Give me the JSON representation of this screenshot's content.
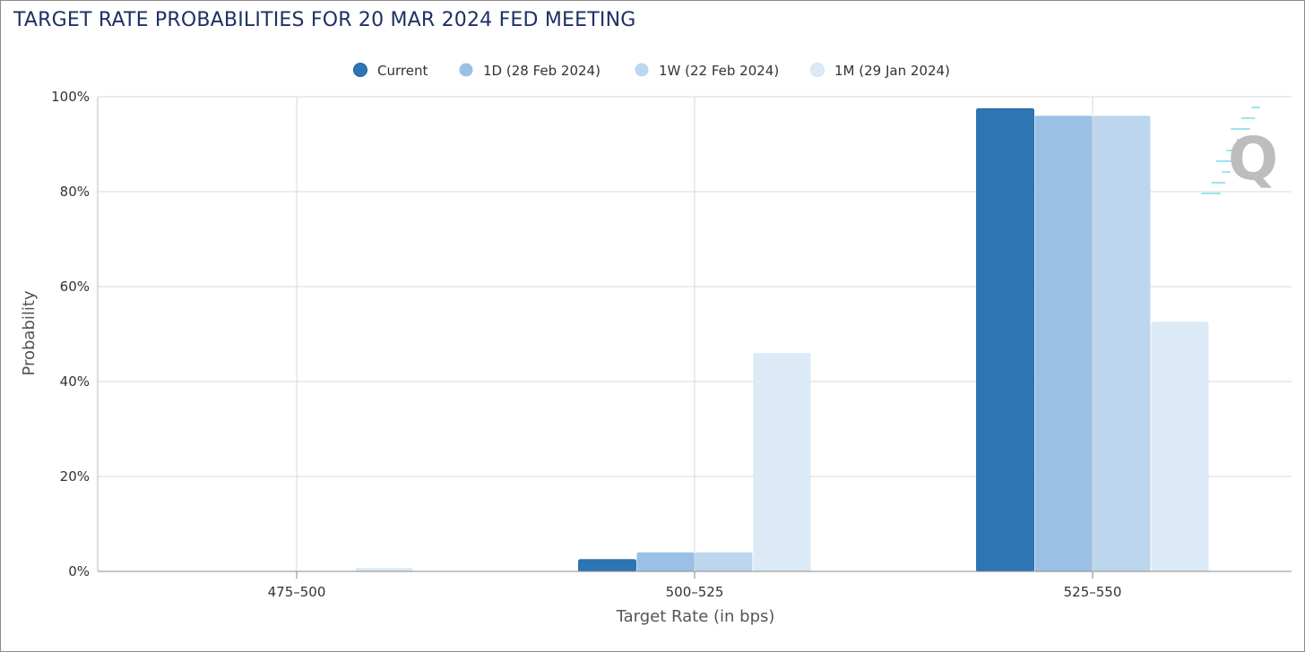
{
  "title": "TARGET RATE PROBABILITIES FOR 20 MAR 2024 FED MEETING",
  "colors": {
    "title": "#1d3163",
    "current": "#2e75b6",
    "one_day": "#9bc0e5",
    "one_week": "#bcd6ee",
    "one_month": "#dce9f6",
    "grid": "#d9d9d9"
  },
  "watermark": {
    "letter": "Q",
    "icon": "cme-fedwatch-q-logo"
  },
  "chart_data": {
    "type": "bar",
    "xlabel": "Target Rate (in bps)",
    "ylabel": "Probability",
    "ylim": [
      0,
      100
    ],
    "y_ticks": [
      "0%",
      "20%",
      "40%",
      "60%",
      "80%",
      "100%"
    ],
    "y_tick_values": [
      0,
      20,
      40,
      60,
      80,
      100
    ],
    "categories": [
      "475-500",
      "500-525",
      "525-550"
    ],
    "grid": true,
    "legend_position": "top",
    "series": [
      {
        "name": "Current",
        "color": "#2e75b6",
        "values": [
          0,
          2.5,
          97.5
        ]
      },
      {
        "name": "1D (28 Feb 2024)",
        "color": "#9bc0e5",
        "values": [
          0,
          4.0,
          96.0
        ]
      },
      {
        "name": "1W (22 Feb 2024)",
        "color": "#bcd6ee",
        "values": [
          0,
          4.0,
          96.0
        ]
      },
      {
        "name": "1M (29 Jan 2024)",
        "color": "#dce9f6",
        "values": [
          0.7,
          46.0,
          52.6
        ]
      }
    ]
  }
}
